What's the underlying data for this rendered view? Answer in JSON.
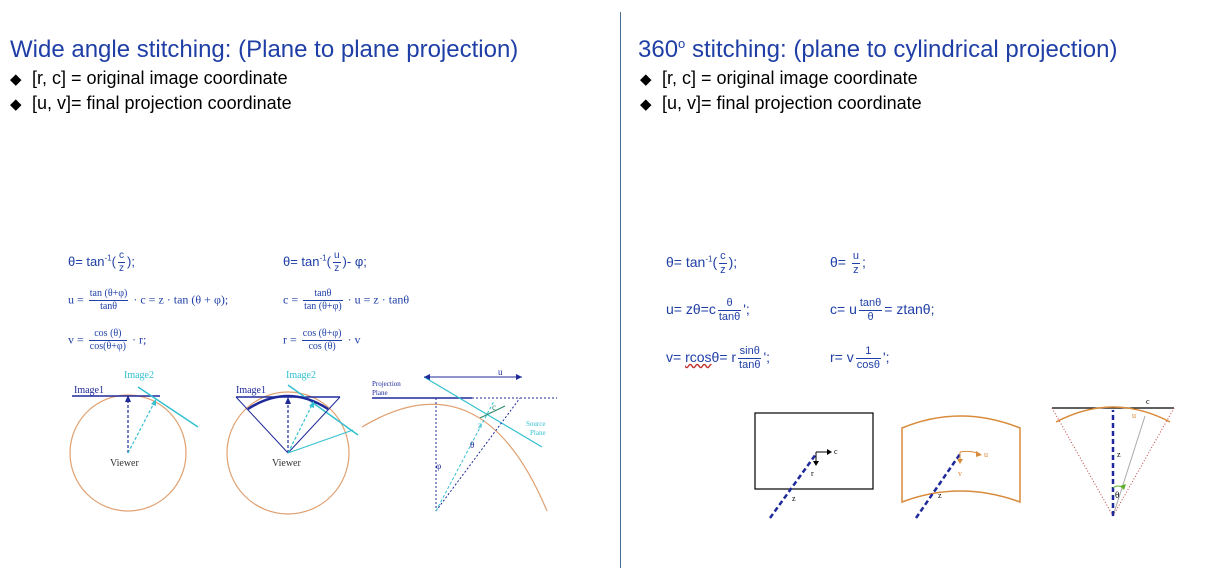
{
  "left": {
    "title": "Wide angle stitching:  (Plane to plane projection)",
    "bullets": [
      "[r, c] = original image coordinate",
      "[u, v]= final projection coordinate"
    ],
    "equations": {
      "theta_a_pre": "θ= tan",
      "theta_a_sup": "-1",
      "theta_a_num": "c",
      "theta_a_den": "z",
      "theta_a_post": ");",
      "theta_b_pre": "θ= tan",
      "theta_b_sup": "-1",
      "theta_b_num": "u",
      "theta_b_den": "z",
      "theta_b_post": ")- φ;",
      "u_pre": "u =",
      "u_num": "tan (θ+φ)",
      "u_den": "tanθ",
      "u_post": "· c = z · tan (θ + φ);",
      "c_pre": "c =",
      "c_num": "tanθ",
      "c_den": "tan (θ+φ)",
      "c_post": "· u = z · tanθ",
      "v_pre": "v =",
      "v_num": "cos (θ)",
      "v_den": "cos(θ+φ)",
      "v_post": "· r;",
      "r_pre": "r =",
      "r_num": "cos (θ+φ)",
      "r_den": "cos (θ)",
      "r_post": "· v"
    },
    "figure_labels": {
      "image1_a": "Image1",
      "image2_a": "Image2",
      "viewer_a": "Viewer",
      "image1_b": "Image1",
      "image2_b": "Image2",
      "viewer_b": "Viewer",
      "projection_plane_1": "Projection",
      "projection_plane_2": "Plane",
      "source_plane_1": "Source",
      "source_plane_2": "Plane",
      "u": "u",
      "c": "c",
      "z": "z",
      "theta": "θ",
      "phi": "φ"
    }
  },
  "right": {
    "title_pre": "360",
    "title_sup": "o",
    "title_post": " stitching: (plane to cylindrical projection)",
    "bullets": [
      "[r, c] = original image coordinate",
      "[u, v]= final projection coordinate"
    ],
    "equations": {
      "theta_a_pre": "θ= tan",
      "theta_a_sup": "-1",
      "theta_a_num": "c",
      "theta_a_den": "z",
      "theta_a_post": ");",
      "theta_b_pre": "θ=",
      "theta_b_num": "u",
      "theta_b_den": "z",
      "theta_b_post": ";",
      "u_pre": "u= zθ=c",
      "u_num": "θ",
      "u_den": "tanθ",
      "u_post": "';",
      "c_pre": "c= u",
      "c_num": "tanθ",
      "c_den": "θ",
      "c_post": "= ztanθ;",
      "v_pre": "v= ",
      "v_under": "rcos",
      "v_mid": "θ= r",
      "v_num": "sinθ",
      "v_den": "tanθ",
      "v_post": "';",
      "r_pre": "r= v",
      "r_num": "1",
      "r_den": "cosθ",
      "r_post": "';"
    },
    "figure_labels": {
      "c1": "c",
      "r": "r",
      "z1": "z",
      "u": "u",
      "v": "v",
      "z2": "z",
      "c2": "c",
      "u2": "u",
      "z3": "z",
      "theta": "θ"
    }
  },
  "colors": {
    "title": "#1f3fa6",
    "divider": "#4a6f8f",
    "circle": "#e0a070",
    "cyan": "#33c0d0",
    "navy": "#1f2a9a",
    "orange": "#d98a3a"
  },
  "icons": {
    "bullet": "diamond-bullet-icon"
  }
}
